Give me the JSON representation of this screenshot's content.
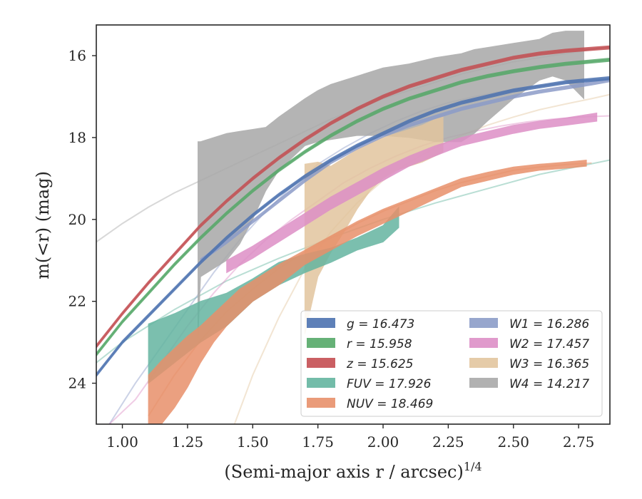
{
  "chart_data": {
    "type": "area",
    "xlabel": "(Semi-major axis r / arcsec)",
    "xlabel_sup": "1/4",
    "ylabel": "m(<r) (mag)",
    "xlim": [
      0.9,
      2.87
    ],
    "ylim": [
      25.0,
      15.25
    ],
    "y_inverted": true,
    "grid": false,
    "legend_placement": "lower-right",
    "x_ticks": [
      "1.00",
      "1.25",
      "1.50",
      "1.75",
      "2.00",
      "2.25",
      "2.50",
      "2.75"
    ],
    "x_tick_values": [
      1.0,
      1.25,
      1.5,
      1.75,
      2.0,
      2.25,
      2.5,
      2.75
    ],
    "y_ticks": [
      "16",
      "18",
      "20",
      "22",
      "24"
    ],
    "y_tick_values": [
      16,
      18,
      20,
      22,
      24
    ],
    "series": [
      {
        "name": "g = 16.473",
        "label_var": "g",
        "label_val": "16.473",
        "color": "#4c72b0",
        "model": {
          "x": [
            0.9,
            1.0,
            1.1,
            1.2,
            1.3,
            1.4,
            1.5,
            1.6,
            1.7,
            1.8,
            1.9,
            2.0,
            2.1,
            2.2,
            2.3,
            2.4,
            2.5,
            2.6,
            2.7,
            2.87
          ],
          "y": [
            23.8,
            23.0,
            22.35,
            21.7,
            21.05,
            20.45,
            19.9,
            19.4,
            18.95,
            18.55,
            18.2,
            17.9,
            17.6,
            17.35,
            17.15,
            17.0,
            16.85,
            16.75,
            16.65,
            16.55
          ]
        },
        "band": {
          "x": [
            0.9,
            1.0,
            1.1,
            1.2,
            1.3,
            1.4,
            1.5,
            1.6,
            1.7,
            1.8,
            1.9,
            2.0,
            2.1,
            2.2,
            2.3,
            2.4,
            2.5,
            2.6,
            2.7,
            2.87
          ],
          "y": [
            23.8,
            23.0,
            22.35,
            21.7,
            21.05,
            20.45,
            19.9,
            19.4,
            18.95,
            18.55,
            18.2,
            17.9,
            17.6,
            17.35,
            17.15,
            17.0,
            16.85,
            16.75,
            16.65,
            16.55
          ],
          "width": 0.08
        }
      },
      {
        "name": "r = 15.958",
        "label_var": "r",
        "label_val": "15.958",
        "color": "#55a868",
        "model": {
          "x": [
            0.9,
            1.0,
            1.1,
            1.2,
            1.3,
            1.4,
            1.5,
            1.6,
            1.7,
            1.8,
            1.9,
            2.0,
            2.1,
            2.2,
            2.3,
            2.4,
            2.5,
            2.6,
            2.7,
            2.87
          ],
          "y": [
            23.3,
            22.5,
            21.8,
            21.1,
            20.45,
            19.85,
            19.3,
            18.8,
            18.35,
            17.95,
            17.6,
            17.3,
            17.05,
            16.85,
            16.65,
            16.5,
            16.38,
            16.28,
            16.2,
            16.1
          ]
        },
        "band": {
          "x": [
            0.9,
            1.0,
            1.1,
            1.2,
            1.3,
            1.4,
            1.5,
            1.6,
            1.7,
            1.8,
            1.9,
            2.0,
            2.1,
            2.2,
            2.3,
            2.4,
            2.5,
            2.6,
            2.7,
            2.87
          ],
          "y": [
            23.3,
            22.5,
            21.8,
            21.1,
            20.45,
            19.85,
            19.3,
            18.8,
            18.35,
            17.95,
            17.6,
            17.3,
            17.05,
            16.85,
            16.65,
            16.5,
            16.38,
            16.28,
            16.2,
            16.1
          ],
          "width": 0.08
        }
      },
      {
        "name": "z = 15.625",
        "label_var": "z",
        "label_val": "15.625",
        "color": "#c44e52",
        "model": {
          "x": [
            0.9,
            1.0,
            1.1,
            1.2,
            1.3,
            1.4,
            1.5,
            1.6,
            1.7,
            1.8,
            1.9,
            2.0,
            2.1,
            2.2,
            2.3,
            2.4,
            2.5,
            2.6,
            2.7,
            2.87
          ],
          "y": [
            23.1,
            22.3,
            21.55,
            20.85,
            20.15,
            19.55,
            19.0,
            18.5,
            18.05,
            17.65,
            17.3,
            17.0,
            16.75,
            16.55,
            16.35,
            16.2,
            16.05,
            15.95,
            15.88,
            15.8
          ]
        },
        "band": {
          "x": [
            0.9,
            1.0,
            1.1,
            1.2,
            1.3,
            1.4,
            1.5,
            1.6,
            1.7,
            1.8,
            1.9,
            2.0,
            2.1,
            2.2,
            2.3,
            2.4,
            2.5,
            2.6,
            2.7,
            2.87
          ],
          "y": [
            23.1,
            22.3,
            21.55,
            20.85,
            20.15,
            19.55,
            19.0,
            18.5,
            18.05,
            17.65,
            17.3,
            17.0,
            16.75,
            16.55,
            16.35,
            16.2,
            16.05,
            15.95,
            15.88,
            15.8
          ],
          "width": 0.08
        }
      },
      {
        "name": "FUV = 17.926",
        "label_var": "FUV",
        "label_val": "17.926",
        "color": "#64b5a0",
        "model": {
          "x": [
            0.9,
            1.0,
            1.2,
            1.4,
            1.6,
            1.8,
            2.0,
            2.2,
            2.4,
            2.6,
            2.87
          ],
          "y": [
            23.5,
            23.0,
            22.2,
            21.5,
            20.95,
            20.45,
            20.0,
            19.6,
            19.25,
            18.9,
            18.55
          ]
        },
        "band": {
          "x": [
            1.1,
            1.2,
            1.3,
            1.4,
            1.5,
            1.6,
            1.7,
            1.8,
            1.9,
            2.0,
            2.06
          ],
          "lo": [
            22.55,
            22.3,
            22.0,
            21.8,
            21.45,
            21.05,
            20.85,
            20.7,
            20.45,
            20.15,
            19.7
          ],
          "hi": [
            24.0,
            23.5,
            23.0,
            22.6,
            22.0,
            21.6,
            21.3,
            21.05,
            20.75,
            20.55,
            20.2
          ]
        }
      },
      {
        "name": "NUV = 18.469",
        "label_var": "NUV",
        "label_val": "18.469",
        "color": "#e8906a",
        "model": {
          "x": [
            1.1,
            1.2,
            1.3,
            1.4,
            1.5,
            1.6,
            1.7,
            1.8,
            1.9,
            2.0,
            2.1,
            2.2,
            2.3,
            2.4,
            2.5,
            2.6,
            2.7,
            2.8
          ],
          "y": [
            24.8,
            23.8,
            22.95,
            22.25,
            21.7,
            21.2,
            20.8,
            20.45,
            20.1,
            19.8,
            19.55,
            19.3,
            19.1,
            18.95,
            18.8,
            18.72,
            18.66,
            18.62
          ]
        },
        "band": {
          "x": [
            1.1,
            1.15,
            1.2,
            1.25,
            1.3,
            1.35,
            1.4,
            1.45,
            1.5,
            1.55,
            1.6,
            1.7,
            1.8,
            1.9,
            2.0,
            2.1,
            2.2,
            2.3,
            2.4,
            2.5,
            2.6,
            2.7,
            2.78
          ],
          "lo": [
            23.8,
            23.45,
            23.15,
            22.85,
            22.6,
            22.3,
            22.0,
            21.7,
            21.5,
            21.3,
            21.1,
            20.75,
            20.4,
            20.05,
            19.75,
            19.5,
            19.25,
            19.0,
            18.85,
            18.72,
            18.65,
            18.6,
            18.55
          ],
          "hi": [
            25.0,
            25.0,
            24.6,
            24.1,
            23.5,
            23.0,
            22.6,
            22.3,
            22.0,
            21.8,
            21.6,
            21.1,
            20.75,
            20.4,
            20.1,
            19.8,
            19.5,
            19.2,
            19.05,
            18.9,
            18.8,
            18.75,
            18.7
          ]
        }
      },
      {
        "name": "W1 = 16.286",
        "label_var": "W1",
        "label_val": "16.286",
        "color": "#8c9cc8",
        "model": {
          "x": [
            0.95,
            1.05,
            1.15,
            1.25,
            1.35,
            1.45,
            1.55,
            1.65,
            1.75,
            1.85,
            1.95,
            2.05,
            2.15,
            2.25,
            2.35,
            2.45,
            2.55,
            2.65,
            2.75,
            2.87
          ],
          "y": [
            25.0,
            24.0,
            23.1,
            22.2,
            21.3,
            20.5,
            19.8,
            19.2,
            18.65,
            18.25,
            17.9,
            17.6,
            17.35,
            17.15,
            17.0,
            16.88,
            16.78,
            16.7,
            16.63,
            16.58
          ]
        },
        "band": {
          "x": [
            1.3,
            1.4,
            1.5,
            1.6,
            1.7,
            1.8,
            1.9,
            2.0,
            2.1,
            2.2,
            2.3,
            2.4,
            2.5,
            2.6,
            2.7,
            2.8,
            2.87
          ],
          "y": [
            21.0,
            20.55,
            20.05,
            19.55,
            19.05,
            18.6,
            18.25,
            17.95,
            17.7,
            17.5,
            17.3,
            17.15,
            17.0,
            16.88,
            16.78,
            16.68,
            16.6
          ],
          "width": 0.08
        }
      },
      {
        "name": "W2 = 17.457",
        "label_var": "W2",
        "label_val": "17.457",
        "color": "#dd8fc6",
        "model": {
          "x": [
            0.95,
            1.05,
            1.15,
            1.25,
            1.35,
            1.45,
            1.55,
            1.65,
            1.75,
            1.85,
            1.95,
            2.05,
            2.15,
            2.25,
            2.35,
            2.45,
            2.55,
            2.65,
            2.75,
            2.87
          ],
          "y": [
            25.0,
            24.4,
            23.5,
            22.6,
            21.8,
            21.1,
            20.5,
            20.0,
            19.55,
            19.1,
            18.75,
            18.45,
            18.2,
            18.0,
            17.85,
            17.72,
            17.62,
            17.55,
            17.5,
            17.47
          ]
        },
        "band": {
          "x": [
            1.4,
            1.5,
            1.6,
            1.7,
            1.8,
            1.9,
            2.0,
            2.1,
            2.2,
            2.3,
            2.4,
            2.5,
            2.6,
            2.7,
            2.82
          ],
          "lo": [
            21.0,
            20.65,
            20.25,
            19.85,
            19.45,
            19.1,
            18.75,
            18.45,
            18.2,
            18.0,
            17.85,
            17.7,
            17.6,
            17.52,
            17.4
          ],
          "hi": [
            21.3,
            20.95,
            20.55,
            20.15,
            19.75,
            19.4,
            19.05,
            18.7,
            18.45,
            18.2,
            18.05,
            17.9,
            17.78,
            17.7,
            17.6
          ]
        }
      },
      {
        "name": "W3 = 16.365",
        "label_var": "W3",
        "label_val": "16.365",
        "color": "#e2c59e",
        "model": {
          "x": [
            1.43,
            1.5,
            1.6,
            1.7,
            1.8,
            1.9,
            2.0,
            2.1,
            2.2,
            2.3,
            2.4,
            2.5,
            2.6,
            2.7,
            2.8,
            2.87
          ],
          "y": [
            25.0,
            23.8,
            22.4,
            21.2,
            20.3,
            19.6,
            19.05,
            18.6,
            18.25,
            17.95,
            17.7,
            17.5,
            17.32,
            17.18,
            17.05,
            16.95
          ]
        },
        "band": {
          "x": [
            1.7,
            1.75,
            1.8,
            1.85,
            1.9,
            1.95,
            2.0,
            2.05,
            2.1,
            2.15,
            2.2,
            2.23
          ],
          "lo": [
            18.65,
            18.6,
            18.7,
            18.5,
            18.3,
            18.15,
            18.0,
            17.9,
            17.8,
            17.7,
            17.55,
            17.5
          ],
          "hi": [
            22.8,
            21.4,
            20.8,
            20.3,
            19.75,
            19.3,
            19.0,
            18.8,
            18.7,
            18.6,
            18.45,
            18.35
          ]
        }
      },
      {
        "name": "W4 = 14.217",
        "label_var": "W4",
        "label_val": "14.217",
        "color": "#a8a8a8",
        "model": {
          "x": [
            0.9,
            1.0,
            1.1,
            1.2,
            1.3,
            1.4,
            1.5,
            1.6,
            1.7,
            1.8,
            1.9,
            2.0,
            2.1,
            2.2,
            2.3,
            2.4,
            2.5,
            2.6,
            2.7,
            2.87
          ],
          "y": [
            20.55,
            20.1,
            19.7,
            19.35,
            19.05,
            18.75,
            18.45,
            18.15,
            17.85,
            17.55,
            17.3,
            17.05,
            16.85,
            16.65,
            16.45,
            16.3,
            16.15,
            16.05,
            15.95,
            15.78
          ]
        },
        "band": {
          "x": [
            1.29,
            1.3,
            1.4,
            1.45,
            1.5,
            1.55,
            1.6,
            1.7,
            1.75,
            1.8,
            1.9,
            2.0,
            2.1,
            2.2,
            2.3,
            2.35,
            2.4,
            2.5,
            2.6,
            2.65,
            2.7,
            2.77
          ],
          "lo": [
            18.1,
            18.1,
            17.9,
            17.85,
            17.8,
            17.75,
            17.5,
            17.05,
            16.85,
            16.7,
            16.5,
            16.3,
            16.2,
            16.05,
            15.95,
            15.85,
            15.8,
            15.7,
            15.6,
            15.45,
            15.4,
            15.4
          ],
          "hi": [
            22.9,
            21.4,
            21.0,
            20.6,
            20.0,
            19.3,
            18.8,
            18.2,
            18.1,
            18.05,
            17.95,
            17.95,
            18.0,
            18.1,
            18.1,
            17.9,
            17.6,
            17.05,
            16.6,
            16.5,
            16.6,
            17.05
          ]
        }
      }
    ]
  }
}
